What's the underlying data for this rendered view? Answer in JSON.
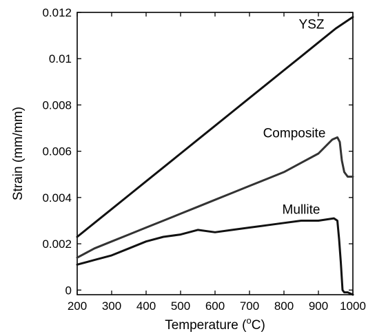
{
  "chart_data": {
    "type": "line",
    "title": "",
    "xlabel": "Temperature (",
    "xlabel_sup": "o",
    "xlabel_suffix": "C)",
    "ylabel": "Strain (mm/mm)",
    "xlim": [
      200,
      1000
    ],
    "ylim": [
      -0.0002,
      0.012
    ],
    "xticks": [
      200,
      300,
      400,
      500,
      600,
      700,
      800,
      900,
      1000
    ],
    "yticks": [
      0,
      0.002,
      0.004,
      0.006,
      0.008,
      0.01,
      0.012
    ],
    "xtick_labels": [
      "200",
      "300",
      "400",
      "500",
      "600",
      "700",
      "800",
      "900",
      "1000"
    ],
    "ytick_labels": [
      "0",
      "0.002",
      "0.004",
      "0.006",
      "0.008",
      "0.01",
      "0.012"
    ],
    "grid": false,
    "legend": "none",
    "series": [
      {
        "name": "YSZ",
        "color": "#111111",
        "x": [
          200,
          250,
          300,
          350,
          400,
          450,
          500,
          550,
          600,
          650,
          700,
          750,
          800,
          850,
          900,
          950,
          1000
        ],
        "y": [
          0.0023,
          0.0029,
          0.0035,
          0.0041,
          0.0047,
          0.0053,
          0.0059,
          0.0065,
          0.0071,
          0.0077,
          0.0083,
          0.0089,
          0.0095,
          0.0101,
          0.0107,
          0.0113,
          0.0118
        ]
      },
      {
        "name": "Composite",
        "color": "#333333",
        "x": [
          200,
          250,
          300,
          350,
          400,
          450,
          500,
          550,
          600,
          650,
          700,
          750,
          800,
          850,
          900,
          940,
          955,
          962,
          968,
          975,
          985,
          1000
        ],
        "y": [
          0.0014,
          0.0018,
          0.0021,
          0.0024,
          0.0027,
          0.003,
          0.0033,
          0.0036,
          0.0039,
          0.0042,
          0.0045,
          0.0048,
          0.0051,
          0.0055,
          0.0059,
          0.0065,
          0.0066,
          0.0064,
          0.0056,
          0.0051,
          0.0049,
          0.0049
        ]
      },
      {
        "name": "Mullite",
        "color": "#111111",
        "x": [
          200,
          250,
          300,
          350,
          400,
          450,
          500,
          550,
          600,
          650,
          700,
          750,
          800,
          850,
          900,
          945,
          955,
          960,
          965,
          970,
          975,
          985,
          1000
        ],
        "y": [
          0.0011,
          0.0013,
          0.0015,
          0.0018,
          0.0021,
          0.0023,
          0.0024,
          0.0026,
          0.0025,
          0.0026,
          0.0027,
          0.0028,
          0.0029,
          0.003,
          0.003,
          0.0031,
          0.003,
          0.0022,
          0.0012,
          0.0,
          -0.0001,
          -0.0001,
          -0.0002
        ]
      }
    ],
    "series_labels": [
      "YSZ",
      "Composite",
      "Mullite"
    ]
  }
}
